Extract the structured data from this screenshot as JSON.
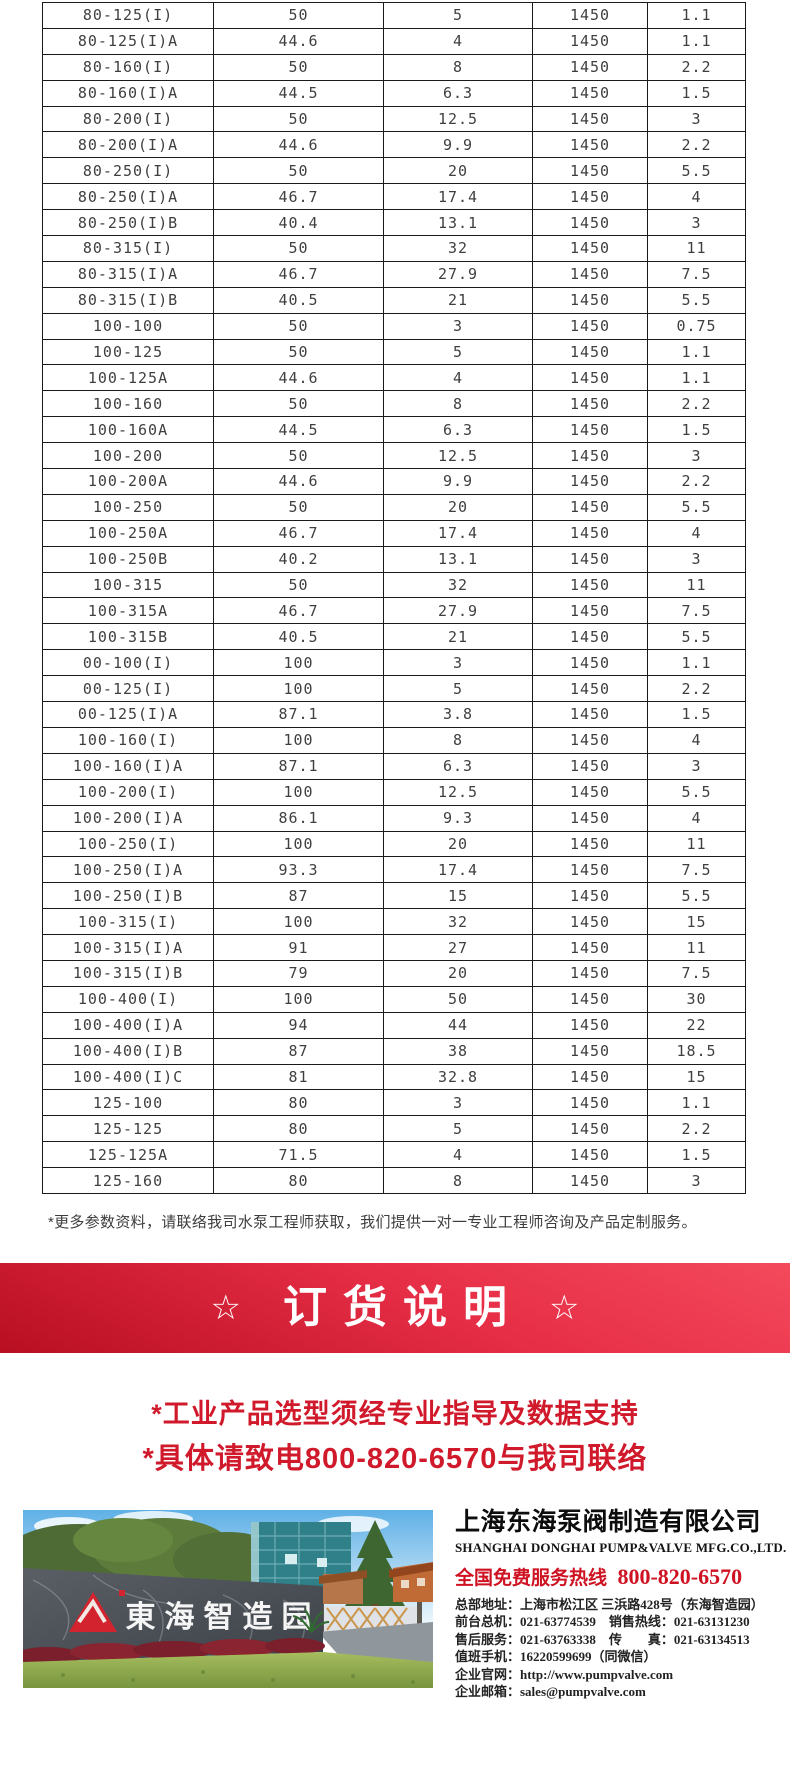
{
  "table": {
    "rows": [
      [
        "80-125(I)",
        "50",
        "5",
        "1450",
        "1.1"
      ],
      [
        "80-125(I)A",
        "44.6",
        "4",
        "1450",
        "1.1"
      ],
      [
        "80-160(I)",
        "50",
        "8",
        "1450",
        "2.2"
      ],
      [
        "80-160(I)A",
        "44.5",
        "6.3",
        "1450",
        "1.5"
      ],
      [
        "80-200(I)",
        "50",
        "12.5",
        "1450",
        "3"
      ],
      [
        "80-200(I)A",
        "44.6",
        "9.9",
        "1450",
        "2.2"
      ],
      [
        "80-250(I)",
        "50",
        "20",
        "1450",
        "5.5"
      ],
      [
        "80-250(I)A",
        "46.7",
        "17.4",
        "1450",
        "4"
      ],
      [
        "80-250(I)B",
        "40.4",
        "13.1",
        "1450",
        "3"
      ],
      [
        "80-315(I)",
        "50",
        "32",
        "1450",
        "11"
      ],
      [
        "80-315(I)A",
        "46.7",
        "27.9",
        "1450",
        "7.5"
      ],
      [
        "80-315(I)B",
        "40.5",
        "21",
        "1450",
        "5.5"
      ],
      [
        "100-100",
        "50",
        "3",
        "1450",
        "0.75"
      ],
      [
        "100-125",
        "50",
        "5",
        "1450",
        "1.1"
      ],
      [
        "100-125A",
        "44.6",
        "4",
        "1450",
        "1.1"
      ],
      [
        "100-160",
        "50",
        "8",
        "1450",
        "2.2"
      ],
      [
        "100-160A",
        "44.5",
        "6.3",
        "1450",
        "1.5"
      ],
      [
        "100-200",
        "50",
        "12.5",
        "1450",
        "3"
      ],
      [
        "100-200A",
        "44.6",
        "9.9",
        "1450",
        "2.2"
      ],
      [
        "100-250",
        "50",
        "20",
        "1450",
        "5.5"
      ],
      [
        "100-250A",
        "46.7",
        "17.4",
        "1450",
        "4"
      ],
      [
        "100-250B",
        "40.2",
        "13.1",
        "1450",
        "3"
      ],
      [
        "100-315",
        "50",
        "32",
        "1450",
        "11"
      ],
      [
        "100-315A",
        "46.7",
        "27.9",
        "1450",
        "7.5"
      ],
      [
        "100-315B",
        "40.5",
        "21",
        "1450",
        "5.5"
      ],
      [
        "00-100(I)",
        "100",
        "3",
        "1450",
        "1.1"
      ],
      [
        "00-125(I)",
        "100",
        "5",
        "1450",
        "2.2"
      ],
      [
        "00-125(I)A",
        "87.1",
        "3.8",
        "1450",
        "1.5"
      ],
      [
        "100-160(I)",
        "100",
        "8",
        "1450",
        "4"
      ],
      [
        "100-160(I)A",
        "87.1",
        "6.3",
        "1450",
        "3"
      ],
      [
        "100-200(I)",
        "100",
        "12.5",
        "1450",
        "5.5"
      ],
      [
        "100-200(I)A",
        "86.1",
        "9.3",
        "1450",
        "4"
      ],
      [
        "100-250(I)",
        "100",
        "20",
        "1450",
        "11"
      ],
      [
        "100-250(I)A",
        "93.3",
        "17.4",
        "1450",
        "7.5"
      ],
      [
        "100-250(I)B",
        "87",
        "15",
        "1450",
        "5.5"
      ],
      [
        "100-315(I)",
        "100",
        "32",
        "1450",
        "15"
      ],
      [
        "100-315(I)A",
        "91",
        "27",
        "1450",
        "11"
      ],
      [
        "100-315(I)B",
        "79",
        "20",
        "1450",
        "7.5"
      ],
      [
        "100-400(I)",
        "100",
        "50",
        "1450",
        "30"
      ],
      [
        "100-400(I)A",
        "94",
        "44",
        "1450",
        "22"
      ],
      [
        "100-400(I)B",
        "87",
        "38",
        "1450",
        "18.5"
      ],
      [
        "100-400(I)C",
        "81",
        "32.8",
        "1450",
        "15"
      ],
      [
        "125-100",
        "80",
        "3",
        "1450",
        "1.1"
      ],
      [
        "125-125",
        "80",
        "5",
        "1450",
        "2.2"
      ],
      [
        "125-125A",
        "71.5",
        "4",
        "1450",
        "1.5"
      ],
      [
        "125-160",
        "80",
        "8",
        "1450",
        "3"
      ]
    ]
  },
  "note": "*更多参数资料，请联络我司水泵工程师获取，我们提供一对一专业工程师咨询及产品定制服务。",
  "banner": {
    "star_left": "☆",
    "title": "订货说明",
    "star_right": "☆"
  },
  "notices": {
    "line1": "*工业产品选型须经专业指导及数据支持",
    "line2": "*具体请致电800-820-6570与我司联络"
  },
  "photo": {
    "sign_text": "東海智造园"
  },
  "company": {
    "name_cn": "上海东海泵阀制造有限公司",
    "name_en": "SHANGHAI DONGHAI PUMP&VALVE MFG.CO.,LTD.",
    "hotline_label": "全国免费服务热线",
    "hotline_number": "800-820-6570",
    "contacts": [
      "总部地址：上海市松江区 三浜路428号（东海智造园）",
      "前台总机：021-63774539　销售热线：021-63131230",
      "售后服务：021-63763338　传　　真：021-63134513",
      "值班手机：16220599699（同微信）",
      "企业官网：http://www.pumpvalve.com",
      "企业邮箱：sales@pumpvalve.com"
    ]
  },
  "colors": {
    "accent_red": "#d01a2c",
    "banner_red_light": "#f4495c",
    "banner_red_dark": "#b80e22",
    "table_border": "#1a1a1a"
  }
}
